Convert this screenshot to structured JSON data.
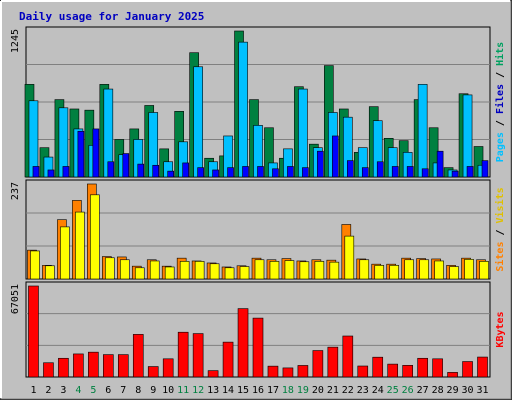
{
  "chart_data": {
    "type": "bar",
    "title": "Daily usage for January 2025",
    "categories": [
      "1",
      "2",
      "3",
      "4",
      "5",
      "6",
      "7",
      "8",
      "9",
      "10",
      "11",
      "12",
      "13",
      "14",
      "15",
      "16",
      "17",
      "18",
      "19",
      "20",
      "21",
      "22",
      "23",
      "24",
      "25",
      "26",
      "27",
      "28",
      "29",
      "30",
      "31"
    ],
    "weekend_days": [
      "4",
      "5",
      "11",
      "12",
      "18",
      "19",
      "25",
      "26"
    ],
    "panels": [
      {
        "id": "hits",
        "ymax_label": "1245",
        "ylim": [
          0,
          1245
        ],
        "side_legend": [
          "Pages",
          "Files",
          "Hits"
        ],
        "series": [
          {
            "name": "Hits",
            "color": "#008040",
            "values": [
              790,
              250,
              660,
              580,
              570,
              790,
              320,
              410,
              610,
              240,
              560,
              1060,
              160,
              180,
              1245,
              660,
              420,
              160,
              770,
              280,
              950,
              580,
              210,
              600,
              330,
              310,
              660,
              420,
              80,
              710,
              260
            ]
          },
          {
            "name": "Files",
            "color": "#00c0ff",
            "values": [
              650,
              170,
              590,
              410,
              270,
              750,
              190,
              320,
              550,
              130,
              300,
              940,
              130,
              350,
              1150,
              440,
              120,
              240,
              750,
              250,
              550,
              510,
              250,
              480,
              250,
              210,
              790,
              120,
              60,
              700,
              100
            ]
          },
          {
            "name": "Pages",
            "color": "#0000ff",
            "values": [
              90,
              60,
              90,
              390,
              410,
              130,
              200,
              110,
              100,
              50,
              120,
              80,
              60,
              80,
              90,
              90,
              70,
              90,
              80,
              220,
              350,
              140,
              80,
              130,
              90,
              90,
              70,
              220,
              50,
              90,
              140
            ]
          }
        ]
      },
      {
        "id": "visits",
        "ymax_label": "237",
        "ylim": [
          0,
          237
        ],
        "side_legend": [
          "Sites",
          "Visits"
        ],
        "series": [
          {
            "name": "Visits",
            "color": "#ff8000",
            "values": [
              72,
              34,
              148,
              196,
              237,
              56,
              55,
              32,
              48,
              32,
              52,
              45,
              40,
              30,
              33,
              52,
              48,
              51,
              45,
              48,
              47,
              136,
              50,
              37,
              37,
              52,
              51,
              50,
              34,
              52,
              48
            ]
          },
          {
            "name": "Sites",
            "color": "#ffff00",
            "values": [
              70,
              33,
              130,
              167,
              210,
              53,
              48,
              28,
              45,
              30,
              44,
              44,
              38,
              28,
              31,
              48,
              44,
              46,
              43,
              44,
              42,
              107,
              48,
              34,
              34,
              48,
              48,
              45,
              31,
              49,
              44
            ]
          }
        ]
      },
      {
        "id": "kbytes",
        "ymax_label": "67051",
        "ylim": [
          0,
          67051
        ],
        "side_legend": [
          "KBytes"
        ],
        "series": [
          {
            "name": "KBytes",
            "color": "#ff0000",
            "values": [
              67051,
              10500,
              13800,
              17000,
              18300,
              16500,
              16500,
              31400,
              7700,
              13400,
              33000,
              32000,
              4700,
              25700,
              50400,
              43400,
              8000,
              6700,
              8500,
              19500,
              22000,
              30200,
              8100,
              14600,
              9500,
              8600,
              13800,
              13400,
              3400,
              11400,
              14700
            ]
          }
        ]
      }
    ]
  }
}
